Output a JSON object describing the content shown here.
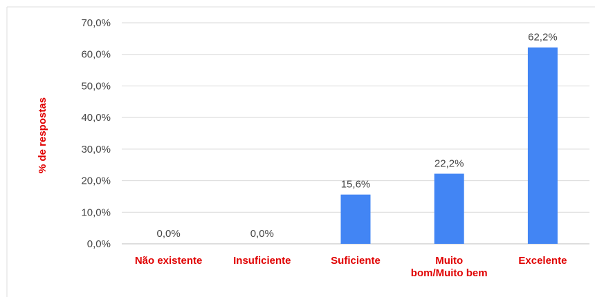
{
  "chart_data": {
    "type": "bar",
    "categories": [
      "Não existente",
      "Insuficiente",
      "Suficiente",
      "Muito bom/Muito bem",
      "Excelente"
    ],
    "category_lines": [
      [
        "Não existente"
      ],
      [
        "Insuficiente"
      ],
      [
        "Suficiente"
      ],
      [
        "Muito",
        "bom/Muito bem"
      ],
      [
        "Excelente"
      ]
    ],
    "values": [
      0.0,
      0.0,
      15.6,
      22.2,
      62.2
    ],
    "data_labels": [
      "0,0%",
      "0,0%",
      "15,6%",
      "22,2%",
      "62,2%"
    ],
    "ylabel": "% de respostas",
    "ylim": [
      0,
      70
    ],
    "yticks": [
      0,
      10,
      20,
      30,
      40,
      50,
      60,
      70
    ],
    "ytick_labels": [
      "0,0%",
      "10,0%",
      "20,0%",
      "30,0%",
      "40,0%",
      "50,0%",
      "60,0%",
      "70,0%"
    ],
    "grid": true,
    "legend": "none",
    "colors": {
      "bar": "#4285f4",
      "grid": "#d9d9d9",
      "axis_text": "#444444",
      "category_text": "#e00000",
      "ylabel_text": "#e00000",
      "frame": "#dddddd"
    }
  }
}
